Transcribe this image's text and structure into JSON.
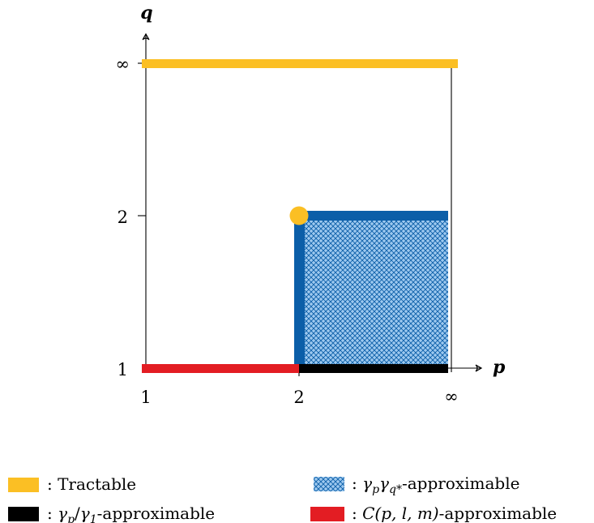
{
  "axes": {
    "x_label": "p",
    "y_label": "q",
    "x_ticks": [
      "1",
      "2",
      "∞"
    ],
    "y_ticks": [
      "1",
      "2",
      "∞"
    ]
  },
  "colors": {
    "tractable": "#fbbf24",
    "gamma_p_q_star": "#0b5ea8",
    "gamma_p_q_star_fill": "#9ec9ef",
    "gamma_p_gamma_1": "#000000",
    "c_p_l_m": "#e31d23"
  },
  "legend": {
    "tractable": ": Tractable",
    "gamma_p_q_star": {
      "prefix": ": ",
      "math_a": "γ",
      "sub_a": "p",
      "math_b": "γ",
      "sub_b": "q*",
      "suffix": "-approximable"
    },
    "gamma_p_gamma_1": {
      "prefix": ": ",
      "math_a": "γ",
      "sub_a": "p",
      "slash": "/",
      "math_b": "γ",
      "sub_b": "1",
      "suffix": "-approximable"
    },
    "c_p_l_m": {
      "prefix": ": ",
      "math": "C(p, l, m)",
      "suffix": "-approximable"
    }
  }
}
